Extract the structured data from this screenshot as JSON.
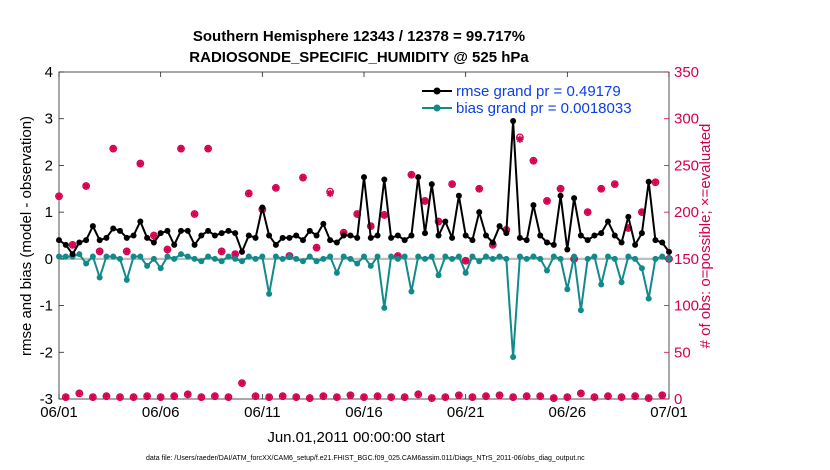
{
  "chart_data": {
    "type": "line",
    "title_line1": "Southern Hemisphere 12343 / 12378 = 99.717%",
    "title_line2": "RADIOSONDE_SPECIFIC_HUMIDITY @ 525 hPa",
    "xlabel": "Jun.01,2011 00:00:00 start",
    "ylabel_left": "rmse and bias (model - observation)",
    "ylabel_right": "# of obs: o=possible; ×=evaluated",
    "footnote": "data file: /Users/raeder/DAI/ATM_forcXX/CAM6_setup/f.e21.FHIST_BGC.f09_025.CAM6assim.011/Diags_NTrS_2011-06/obs_diag_output.nc",
    "x_ticks": [
      "06/01",
      "06/06",
      "06/11",
      "06/16",
      "06/21",
      "06/26",
      "07/01"
    ],
    "x_range_days": [
      0,
      30
    ],
    "ylim_left": [
      -3,
      4
    ],
    "y_ticks_left": [
      "-3",
      "-2",
      "-1",
      "0",
      "1",
      "2",
      "3",
      "4"
    ],
    "ylim_right": [
      0,
      350
    ],
    "y_ticks_right": [
      "0",
      "50",
      "100",
      "150",
      "200",
      "250",
      "300",
      "350"
    ],
    "colors": {
      "rmse": "#000000",
      "bias": "#138a8a",
      "obs": "#d4004f",
      "legend_text": "#0b3ee6",
      "zero_line": "#bdbdbd"
    },
    "series": [
      {
        "name": "rmse",
        "legend": "rmse grand pr = 0.49179",
        "values": [
          0.4,
          0.3,
          0.1,
          0.35,
          0.4,
          0.7,
          0.4,
          0.45,
          0.65,
          0.6,
          0.45,
          0.5,
          0.8,
          0.45,
          0.35,
          0.55,
          0.6,
          0.3,
          0.6,
          0.6,
          0.3,
          0.5,
          0.6,
          0.5,
          0.55,
          0.6,
          0.55,
          0.15,
          0.5,
          0.45,
          1.1,
          0.5,
          0.3,
          0.45,
          0.45,
          0.5,
          0.4,
          0.6,
          0.5,
          0.75,
          0.4,
          0.35,
          0.5,
          0.5,
          0.45,
          1.75,
          0.45,
          0.5,
          1.7,
          0.45,
          0.5,
          0.4,
          0.5,
          1.75,
          0.55,
          1.6,
          0.5,
          0.8,
          0.45,
          1.35,
          0.5,
          0.4,
          1.0,
          0.5,
          0.35,
          0.7,
          0.55,
          2.95,
          0.45,
          0.4,
          1.15,
          0.5,
          0.35,
          0.3,
          1.35,
          0.2,
          1.3,
          0.5,
          0.4,
          0.5,
          0.55,
          0.8,
          0.5,
          0.35,
          0.9,
          0.3,
          0.55,
          1.65,
          0.4,
          0.35,
          0.15
        ]
      },
      {
        "name": "bias",
        "legend": "bias grand pr = 0.0018033",
        "values": [
          0.05,
          0.05,
          0.05,
          0.1,
          -0.1,
          0.05,
          -0.4,
          0.05,
          0.05,
          0.0,
          -0.45,
          0.05,
          0.05,
          -0.15,
          0.0,
          -0.2,
          0.05,
          0.0,
          0.1,
          0.05,
          0.0,
          -0.05,
          0.05,
          0.0,
          -0.05,
          0.05,
          0.0,
          -0.05,
          0.05,
          0.0,
          0.05,
          -0.75,
          0.05,
          0.0,
          0.05,
          0.0,
          -0.05,
          0.05,
          -0.05,
          0.0,
          0.05,
          -0.3,
          0.05,
          0.0,
          -0.1,
          0.05,
          -0.15,
          0.05,
          -1.05,
          0.05,
          0.0,
          0.05,
          -0.7,
          0.05,
          0.0,
          0.05,
          -0.35,
          0.05,
          0.0,
          0.05,
          -0.3,
          0.05,
          -0.05,
          0.05,
          0.0,
          0.05,
          0.0,
          -2.1,
          0.05,
          0.0,
          0.05,
          0.0,
          -0.25,
          0.05,
          0.0,
          -0.65,
          0.05,
          -1.1,
          0.0,
          0.05,
          -0.55,
          0.05,
          0.0,
          -0.5,
          0.05,
          0.0,
          -0.2,
          -0.85,
          0.0,
          0.05,
          0.0
        ]
      },
      {
        "name": "obs_possible",
        "values": [
          217,
          2,
          165,
          6,
          228,
          2,
          158,
          3,
          268,
          2,
          158,
          2,
          252,
          3,
          175,
          2,
          160,
          3,
          268,
          5,
          198,
          2,
          268,
          3,
          158,
          2,
          155,
          17,
          220,
          3,
          203,
          2,
          226,
          3,
          153,
          2,
          237,
          1,
          162,
          3,
          222,
          2,
          178,
          4,
          198,
          2,
          185,
          3,
          197,
          2,
          153,
          2,
          240,
          5,
          212,
          1,
          190,
          2,
          230,
          4,
          148,
          2,
          225,
          3,
          165,
          4,
          181,
          2,
          280,
          3,
          255,
          3,
          212,
          1,
          225,
          2,
          150,
          6,
          200,
          2,
          225,
          3,
          230,
          2,
          183,
          3,
          200,
          1,
          232,
          4,
          150
        ]
      },
      {
        "name": "obs_evaluated",
        "values": [
          217,
          2,
          165,
          6,
          228,
          2,
          158,
          3,
          268,
          2,
          158,
          2,
          252,
          3,
          175,
          2,
          160,
          3,
          268,
          5,
          198,
          2,
          268,
          3,
          158,
          2,
          155,
          17,
          220,
          3,
          203,
          2,
          226,
          3,
          153,
          2,
          237,
          1,
          162,
          3,
          220,
          2,
          178,
          4,
          198,
          2,
          185,
          3,
          197,
          2,
          153,
          2,
          240,
          5,
          212,
          1,
          190,
          2,
          230,
          4,
          148,
          2,
          225,
          3,
          165,
          4,
          181,
          2,
          278,
          3,
          255,
          3,
          212,
          1,
          225,
          2,
          150,
          6,
          200,
          2,
          225,
          3,
          230,
          2,
          183,
          3,
          200,
          1,
          232,
          4,
          150
        ]
      }
    ]
  }
}
